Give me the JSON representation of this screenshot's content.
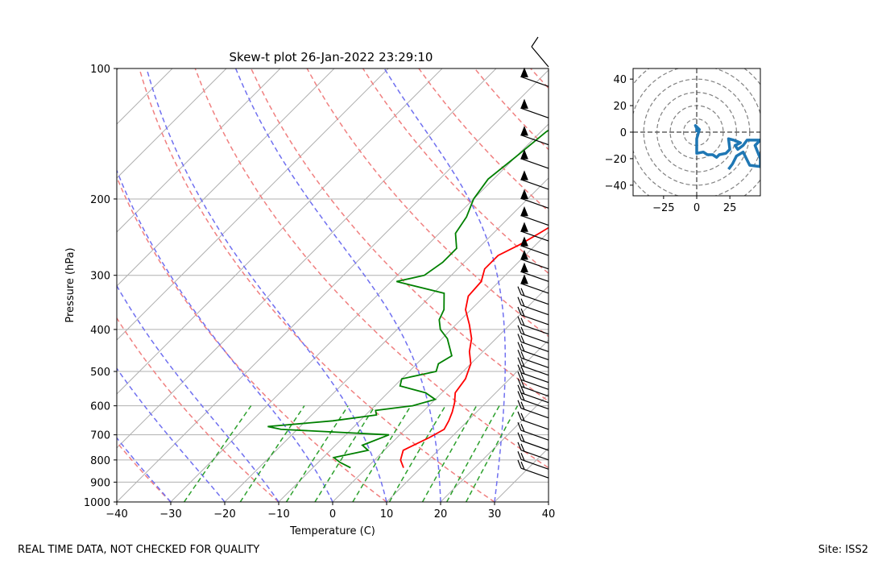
{
  "chart_data": [
    {
      "type": "line",
      "title": "Skew-t plot 26-Jan-2022 23:29:10",
      "xlabel": "Temperature (C)",
      "ylabel": "Pressure (hPa)",
      "xlim": [
        -40,
        40
      ],
      "ylim": [
        1000,
        100
      ],
      "yscale": "log",
      "x_ticks": [
        -40,
        -30,
        -20,
        -10,
        0,
        10,
        20,
        30,
        40
      ],
      "y_ticks": [
        100,
        200,
        300,
        400,
        500,
        600,
        700,
        800,
        900,
        1000
      ],
      "grid": true,
      "series": [
        {
          "color": "#ff0000",
          "points": [
            [
              834,
              6.8
            ],
            [
              800,
              4.8
            ],
            [
              760,
              3.5
            ],
            [
              740,
              4.5
            ],
            [
              710,
              6.0
            ],
            [
              680,
              7.2
            ],
            [
              650,
              6.5
            ],
            [
              620,
              5.5
            ],
            [
              590,
              4.2
            ],
            [
              560,
              2.5
            ],
            [
              520,
              1.8
            ],
            [
              480,
              0
            ],
            [
              450,
              -2.5
            ],
            [
              420,
              -4.5
            ],
            [
              390,
              -7.5
            ],
            [
              360,
              -11
            ],
            [
              335,
              -13
            ],
            [
              310,
              -13.3
            ],
            [
              290,
              -15
            ],
            [
              270,
              -15
            ],
            [
              255,
              -13
            ],
            [
              240,
              -11.5
            ],
            [
              225,
              -10
            ],
            [
              210,
              -5
            ],
            [
              195,
              -3
            ],
            [
              180,
              -1
            ],
            [
              160,
              1
            ],
            [
              145,
              2
            ],
            [
              130,
              1
            ],
            [
              120,
              3
            ],
            [
              110,
              7
            ],
            [
              100,
              8
            ]
          ]
        },
        {
          "color": "#008000",
          "points": [
            [
              834,
              -3
            ],
            [
              810,
              -6
            ],
            [
              790,
              -8
            ],
            [
              760,
              -3
            ],
            [
              740,
              -5
            ],
            [
              700,
              -2
            ],
            [
              680,
              -23
            ],
            [
              670,
              -26
            ],
            [
              650,
              -15
            ],
            [
              630,
              -8
            ],
            [
              615,
              -9
            ],
            [
              600,
              -3
            ],
            [
              580,
              0
            ],
            [
              560,
              -3
            ],
            [
              540,
              -9
            ],
            [
              520,
              -10
            ],
            [
              500,
              -5
            ],
            [
              480,
              -6
            ],
            [
              460,
              -5
            ],
            [
              420,
              -9
            ],
            [
              400,
              -12
            ],
            [
              380,
              -14
            ],
            [
              360,
              -15
            ],
            [
              330,
              -18
            ],
            [
              310,
              -29
            ],
            [
              300,
              -25
            ],
            [
              280,
              -24
            ],
            [
              260,
              -24
            ],
            [
              240,
              -27
            ],
            [
              220,
              -28
            ],
            [
              200,
              -30
            ],
            [
              180,
              -31
            ],
            [
              160,
              -30
            ],
            [
              140,
              -29
            ],
            [
              120,
              -26
            ],
            [
              110,
              -23
            ],
            [
              100,
              -20
            ]
          ]
        }
      ]
    },
    {
      "type": "line",
      "title": "",
      "xlim": [
        -48,
        48
      ],
      "ylim": [
        -48,
        48
      ],
      "x_ticks": [
        -25,
        0,
        25
      ],
      "y_ticks": [
        -40,
        -20,
        0,
        20,
        40
      ],
      "grid": true,
      "series": [
        {
          "color": "#1f77b4",
          "points": [
            [
              0,
              0
            ],
            [
              0,
              3
            ],
            [
              -1,
              5
            ],
            [
              2,
              2
            ],
            [
              0,
              -5
            ],
            [
              0,
              -16
            ],
            [
              5,
              -15
            ],
            [
              8,
              -17
            ],
            [
              12,
              -17
            ],
            [
              15,
              -19
            ],
            [
              17,
              -17
            ],
            [
              22,
              -16
            ],
            [
              25,
              -13
            ],
            [
              24,
              -5
            ],
            [
              28,
              -6
            ],
            [
              33,
              -8
            ],
            [
              29,
              -10
            ],
            [
              31,
              -13
            ],
            [
              35,
              -10
            ],
            [
              38,
              -6
            ],
            [
              44,
              -6
            ],
            [
              48,
              -6
            ],
            [
              44,
              -10
            ],
            [
              48,
              -20
            ],
            [
              48,
              -26
            ],
            [
              40,
              -25
            ],
            [
              35,
              -15
            ],
            [
              30,
              -18
            ],
            [
              27,
              -24
            ],
            [
              24,
              -28
            ]
          ]
        }
      ]
    }
  ],
  "footer": {
    "left": "REAL TIME DATA, NOT CHECKED FOR QUALITY",
    "right": "Site: ISS2"
  }
}
